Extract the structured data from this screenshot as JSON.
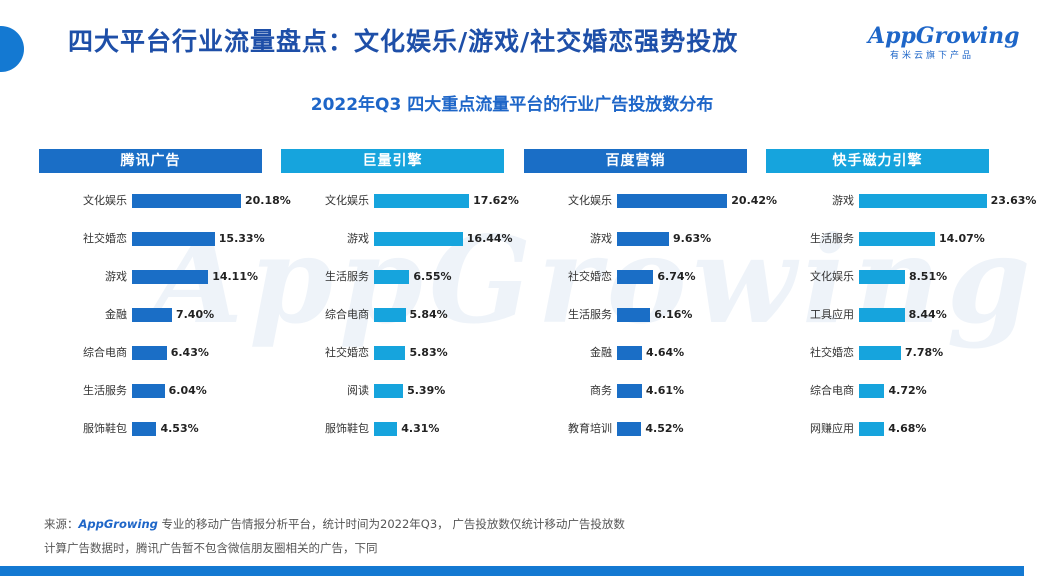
{
  "header": {
    "title": "四大平台行业流量盘点：文化娱乐/游戏/社交婚恋强势投放",
    "subtitle": "2022年Q3 四大重点流量平台的行业广告投放数分布"
  },
  "logo": {
    "wordmark": "AppGrowing",
    "tagline": "有米云旗下产品"
  },
  "watermark": {
    "text": "AppGrowing"
  },
  "colors": {
    "dark_blue": "#1a6ec6",
    "light_blue": "#16a4dd"
  },
  "chart_data": [
    {
      "type": "bar",
      "title": "腾讯广告",
      "orientation": "horizontal",
      "color": "#1a6ec6",
      "categories": [
        "文化娱乐",
        "社交婚恋",
        "游戏",
        "金融",
        "综合电商",
        "生活服务",
        "服饰鞋包"
      ],
      "values": [
        20.18,
        15.33,
        14.11,
        7.4,
        6.43,
        6.04,
        4.53
      ],
      "labels": [
        "20.18%",
        "15.33%",
        "14.11%",
        "7.40%",
        "6.43%",
        "6.04%",
        "4.53%"
      ]
    },
    {
      "type": "bar",
      "title": "巨量引擎",
      "orientation": "horizontal",
      "color": "#16a4dd",
      "categories": [
        "文化娱乐",
        "游戏",
        "生活服务",
        "综合电商",
        "社交婚恋",
        "阅读",
        "服饰鞋包"
      ],
      "values": [
        17.62,
        16.44,
        6.55,
        5.84,
        5.83,
        5.39,
        4.31
      ],
      "labels": [
        "17.62%",
        "16.44%",
        "6.55%",
        "5.84%",
        "5.83%",
        "5.39%",
        "4.31%"
      ]
    },
    {
      "type": "bar",
      "title": "百度营销",
      "orientation": "horizontal",
      "color": "#1a6ec6",
      "categories": [
        "文化娱乐",
        "游戏",
        "社交婚恋",
        "生活服务",
        "金融",
        "商务",
        "教育培训"
      ],
      "values": [
        20.42,
        9.63,
        6.74,
        6.16,
        4.64,
        4.61,
        4.52
      ],
      "labels": [
        "20.42%",
        "9.63%",
        "6.74%",
        "6.16%",
        "4.64%",
        "4.61%",
        "4.52%"
      ]
    },
    {
      "type": "bar",
      "title": "快手磁力引擎",
      "orientation": "horizontal",
      "color": "#16a4dd",
      "categories": [
        "游戏",
        "生活服务",
        "文化娱乐",
        "工具应用",
        "社交婚恋",
        "综合电商",
        "网赚应用"
      ],
      "values": [
        23.63,
        14.07,
        8.51,
        8.44,
        7.78,
        4.72,
        4.68
      ],
      "labels": [
        "23.63%",
        "14.07%",
        "8.51%",
        "8.44%",
        "7.78%",
        "4.72%",
        "4.68%"
      ]
    }
  ],
  "footer": {
    "source_prefix": "来源：",
    "source_brand": "AppGrowing",
    "source_line1": "专业的移动广告情报分析平台，统计时间为2022年Q3， 广告投放数仅统计移动广告投放数",
    "source_line2": "计算广告数据时，腾讯广告暂不包含微信朋友圈相关的广告，下同"
  }
}
